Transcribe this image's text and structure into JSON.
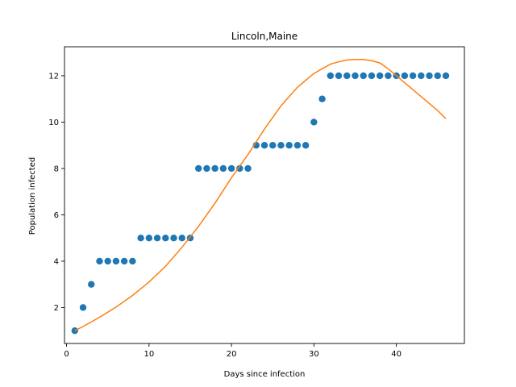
{
  "chart_data": {
    "type": "scatter",
    "title": "Lincoln,Maine",
    "xlabel": "Days since infection",
    "ylabel": "Population infected",
    "xlim": [
      -0.25,
      48.25
    ],
    "ylim": [
      0.45,
      13.25
    ],
    "xticks": [
      0,
      10,
      20,
      30,
      40
    ],
    "yticks": [
      2,
      4,
      6,
      8,
      10,
      12
    ],
    "grid": false,
    "series": [
      {
        "type": "scatter",
        "color": "#1f77b4",
        "x": [
          1,
          2,
          3,
          4,
          5,
          6,
          7,
          8,
          9,
          10,
          11,
          12,
          13,
          14,
          15,
          16,
          17,
          18,
          19,
          20,
          21,
          22,
          23,
          24,
          25,
          26,
          27,
          28,
          29,
          30,
          31,
          32,
          33,
          34,
          35,
          36,
          37,
          38,
          39,
          40,
          41,
          42,
          43,
          44,
          45,
          46
        ],
        "y": [
          1,
          2,
          3,
          4,
          4,
          4,
          4,
          4,
          5,
          5,
          5,
          5,
          5,
          5,
          5,
          8,
          8,
          8,
          8,
          8,
          8,
          8,
          9,
          9,
          9,
          9,
          9,
          9,
          9,
          10,
          11,
          12,
          12,
          12,
          12,
          12,
          12,
          12,
          12,
          12,
          12,
          12,
          12,
          12,
          12,
          12
        ]
      },
      {
        "type": "line",
        "color": "#ff7f0e",
        "x": [
          1,
          2,
          4,
          6,
          8,
          10,
          12,
          14,
          16,
          18,
          20,
          22,
          24,
          26,
          28,
          30,
          31,
          32,
          33,
          34,
          35,
          36,
          37,
          38,
          39,
          40,
          41,
          42,
          43,
          44,
          45,
          46
        ],
        "y": [
          1.0,
          1.18,
          1.58,
          2.02,
          2.52,
          3.1,
          3.78,
          4.6,
          5.5,
          6.5,
          7.6,
          8.6,
          9.7,
          10.7,
          11.5,
          12.1,
          12.3,
          12.5,
          12.6,
          12.68,
          12.7,
          12.7,
          12.65,
          12.55,
          12.3,
          12.0,
          11.7,
          11.4,
          11.1,
          10.8,
          10.5,
          10.15
        ]
      }
    ]
  }
}
